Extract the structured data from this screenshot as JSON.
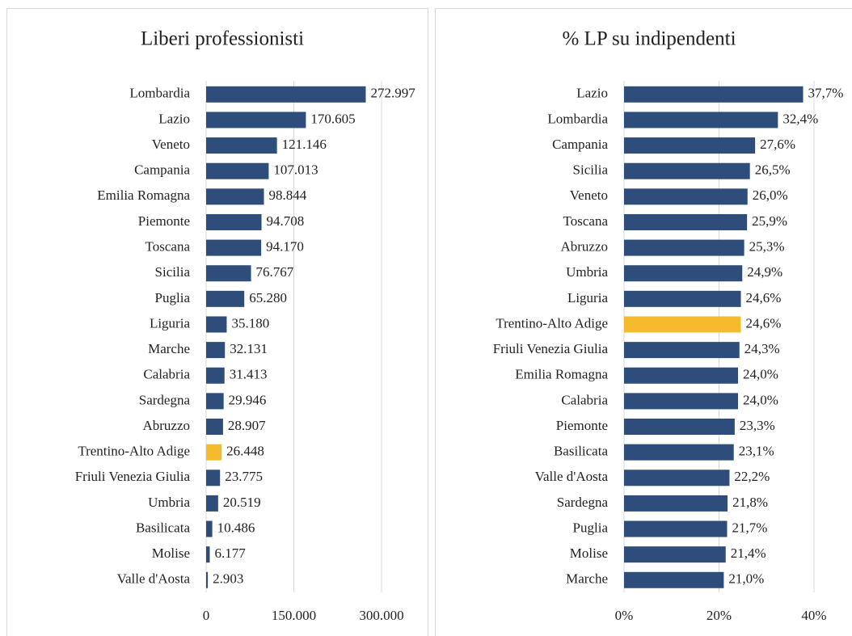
{
  "chart_data": [
    {
      "type": "bar",
      "orientation": "horizontal",
      "title": "Liberi professionisti",
      "categories": [
        "Lombardia",
        "Lazio",
        "Veneto",
        "Campania",
        "Emilia Romagna",
        "Piemonte",
        "Toscana",
        "Sicilia",
        "Puglia",
        "Liguria",
        "Marche",
        "Calabria",
        "Sardegna",
        "Abruzzo",
        "Trentino-Alto Adige",
        "Friuli Venezia Giulia",
        "Umbria",
        "Basilicata",
        "Molise",
        "Valle d'Aosta"
      ],
      "values": [
        272997,
        170605,
        121146,
        107013,
        98844,
        94708,
        94170,
        76767,
        65280,
        35180,
        32131,
        31413,
        29946,
        28907,
        26448,
        23775,
        20519,
        10486,
        6177,
        2903
      ],
      "value_labels": [
        "272.997",
        "170.605",
        "121.146",
        "107.013",
        "98.844",
        "94.708",
        "94.170",
        "76.767",
        "65.280",
        "35.180",
        "32.131",
        "31.413",
        "29.946",
        "28.907",
        "26.448",
        "23.775",
        "20.519",
        "10.486",
        "6.177",
        "2.903"
      ],
      "colors": [
        "#2e4d7b",
        "#2e4d7b",
        "#2e4d7b",
        "#2e4d7b",
        "#2e4d7b",
        "#2e4d7b",
        "#2e4d7b",
        "#2e4d7b",
        "#2e4d7b",
        "#2e4d7b",
        "#2e4d7b",
        "#2e4d7b",
        "#2e4d7b",
        "#2e4d7b",
        "#f4bc2c",
        "#2e4d7b",
        "#2e4d7b",
        "#2e4d7b",
        "#2e4d7b",
        "#2e4d7b"
      ],
      "xlim": [
        0,
        300000
      ],
      "xticks": [
        0,
        {
          "value": 150000,
          "label": "150.000"
        },
        {
          "value": 300000,
          "label": "300.000"
        }
      ],
      "grid": true
    },
    {
      "type": "bar",
      "orientation": "horizontal",
      "title": "% LP su indipendenti",
      "categories": [
        "Lazio",
        "Lombardia",
        "Campania",
        "Sicilia",
        "Veneto",
        "Toscana",
        "Abruzzo",
        "Umbria",
        "Liguria",
        "Trentino-Alto Adige",
        "Friuli Venezia Giulia",
        "Emilia Romagna",
        "Calabria",
        "Piemonte",
        "Basilicata",
        "Valle d'Aosta",
        "Sardegna",
        "Puglia",
        "Molise",
        "Marche"
      ],
      "values": [
        37.7,
        32.4,
        27.6,
        26.5,
        26.0,
        25.9,
        25.3,
        24.9,
        24.6,
        24.6,
        24.3,
        24.0,
        24.0,
        23.3,
        23.1,
        22.2,
        21.8,
        21.7,
        21.4,
        21.0
      ],
      "value_labels": [
        "37,7%",
        "32,4%",
        "27,6%",
        "26,5%",
        "26,0%",
        "25,9%",
        "25,3%",
        "24,9%",
        "24,6%",
        "24,6%",
        "24,3%",
        "24,0%",
        "24,0%",
        "23,3%",
        "23,1%",
        "22,2%",
        "21,8%",
        "21,7%",
        "21,4%",
        "21,0%"
      ],
      "colors": [
        "#2e4d7b",
        "#2e4d7b",
        "#2e4d7b",
        "#2e4d7b",
        "#2e4d7b",
        "#2e4d7b",
        "#2e4d7b",
        "#2e4d7b",
        "#2e4d7b",
        "#f4bc2c",
        "#2e4d7b",
        "#2e4d7b",
        "#2e4d7b",
        "#2e4d7b",
        "#2e4d7b",
        "#2e4d7b",
        "#2e4d7b",
        "#2e4d7b",
        "#2e4d7b",
        "#2e4d7b"
      ],
      "xlim": [
        0,
        40
      ],
      "xticks": [
        {
          "value": 0,
          "label": "0%"
        },
        {
          "value": 20,
          "label": "20%"
        },
        {
          "value": 40,
          "label": "40%"
        }
      ],
      "grid": true
    }
  ]
}
